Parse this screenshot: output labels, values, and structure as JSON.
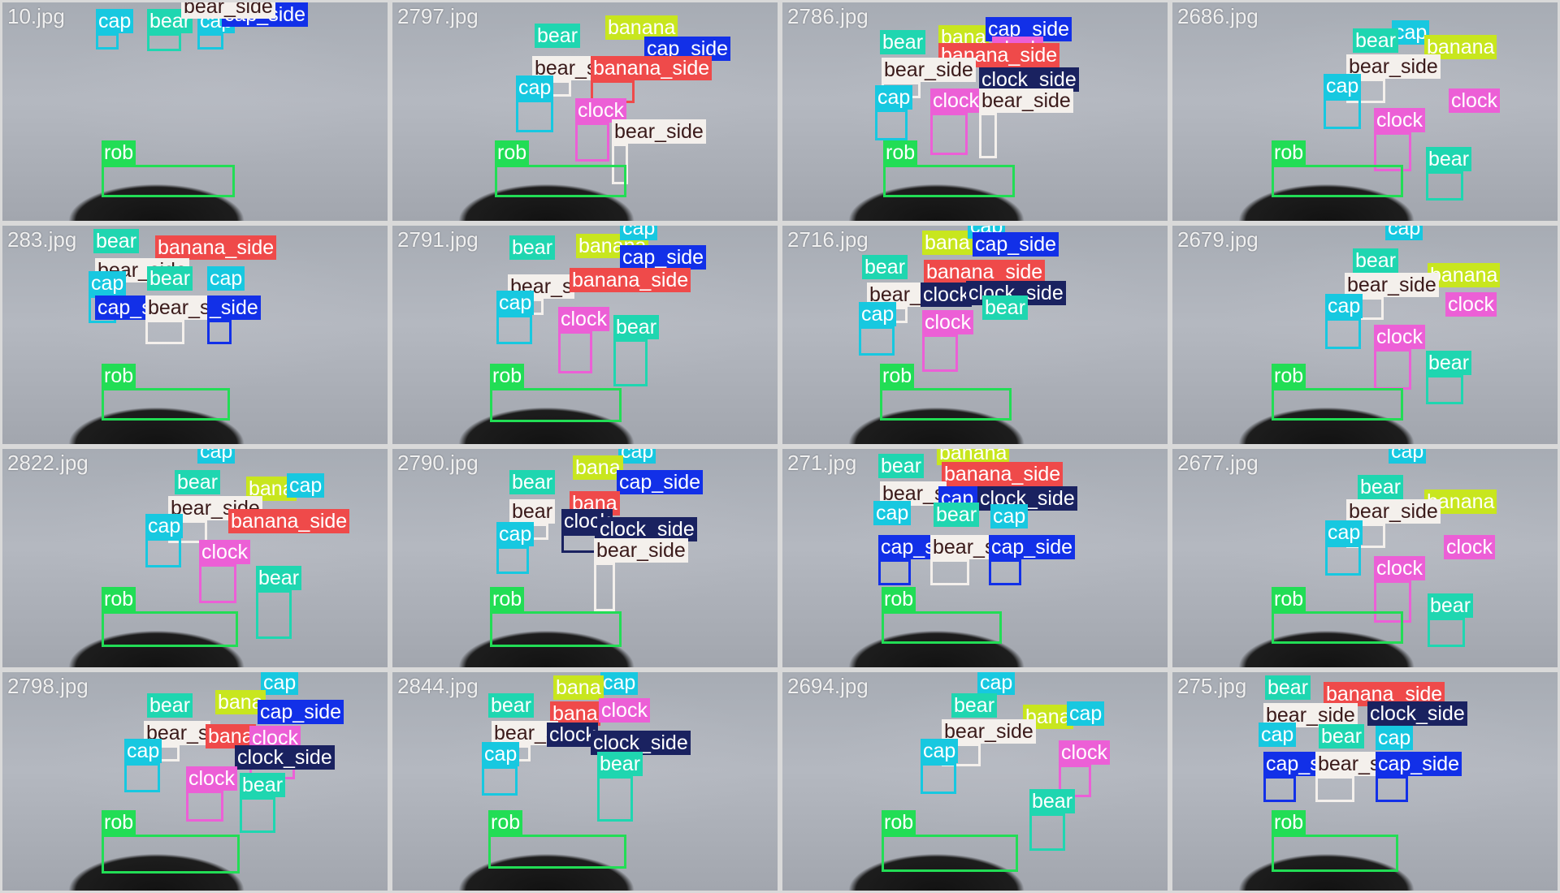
{
  "classes": {
    "rob": {
      "color": "#22dd55",
      "text": "#ffffff"
    },
    "bear": {
      "color": "#1fd6b0",
      "text": "#ffffff"
    },
    "cap": {
      "color": "#17c8e0",
      "text": "#ffffff"
    },
    "banana": {
      "color": "#c8e61e",
      "text": "#ffffff"
    },
    "clock": {
      "color": "#ec5fd6",
      "text": "#ffffff"
    },
    "bear_side": {
      "color": "#f4f0ec",
      "text": "#3a1a1a"
    },
    "banana_side": {
      "color": "#ef4a4a",
      "text": "#ffffff"
    },
    "cap_side": {
      "color": "#1230e8",
      "text": "#ffffff"
    },
    "clock_side": {
      "color": "#1a2260",
      "text": "#ffffff"
    }
  },
  "tiles": [
    {
      "filename": "10.jpg",
      "detections": [
        {
          "class": "cap",
          "label": "cap"
        },
        {
          "class": "bear",
          "label": "bear"
        },
        {
          "class": "cap",
          "label": "cap"
        },
        {
          "class": "cap_side",
          "label": "cap_side"
        },
        {
          "class": "bear_side",
          "label": "bear_side"
        },
        {
          "class": "rob",
          "label": "rob"
        }
      ]
    },
    {
      "filename": "2797.jpg",
      "detections": [
        {
          "class": "bear",
          "label": "bear"
        },
        {
          "class": "banana",
          "label": "banana"
        },
        {
          "class": "cap_side",
          "label": "cap_side"
        },
        {
          "class": "bear_side",
          "label": "bear_s"
        },
        {
          "class": "banana_side",
          "label": "banana_side"
        },
        {
          "class": "cap",
          "label": "cap"
        },
        {
          "class": "clock",
          "label": "clock"
        },
        {
          "class": "bear_side",
          "label": "bear_side"
        },
        {
          "class": "rob",
          "label": "rob"
        }
      ]
    },
    {
      "filename": "2786.jpg",
      "detections": [
        {
          "class": "bear",
          "label": "bear"
        },
        {
          "class": "banana",
          "label": "bana"
        },
        {
          "class": "cap_side",
          "label": "cap_side"
        },
        {
          "class": "clock",
          "label": "clock"
        },
        {
          "class": "banana_side",
          "label": "banana_side"
        },
        {
          "class": "bear_side",
          "label": "bear_side"
        },
        {
          "class": "clock_side",
          "label": "clock_side"
        },
        {
          "class": "cap",
          "label": "cap"
        },
        {
          "class": "clock",
          "label": "clock"
        },
        {
          "class": "bear_side",
          "label": "bear_side"
        },
        {
          "class": "rob",
          "label": "rob"
        }
      ]
    },
    {
      "filename": "2686.jpg",
      "detections": [
        {
          "class": "cap",
          "label": "cap"
        },
        {
          "class": "bear",
          "label": "bear"
        },
        {
          "class": "banana",
          "label": "banana"
        },
        {
          "class": "bear_side",
          "label": "bear_side"
        },
        {
          "class": "cap",
          "label": "cap"
        },
        {
          "class": "clock",
          "label": "clock"
        },
        {
          "class": "clock",
          "label": "clock"
        },
        {
          "class": "bear",
          "label": "bear"
        },
        {
          "class": "rob",
          "label": "rob"
        }
      ]
    },
    {
      "filename": "283.jpg",
      "detections": [
        {
          "class": "bear",
          "label": "bear"
        },
        {
          "class": "banana_side",
          "label": "banana_side"
        },
        {
          "class": "bear_side",
          "label": "bear_side"
        },
        {
          "class": "cap",
          "label": "cap"
        },
        {
          "class": "bear",
          "label": "bear"
        },
        {
          "class": "cap",
          "label": "cap"
        },
        {
          "class": "cap_side",
          "label": "cap_s"
        },
        {
          "class": "bear_side",
          "label": "bear_side"
        },
        {
          "class": "cap_side",
          "label": "_side"
        },
        {
          "class": "rob",
          "label": "rob"
        }
      ]
    },
    {
      "filename": "2791.jpg",
      "detections": [
        {
          "class": "bear",
          "label": "bear"
        },
        {
          "class": "banana",
          "label": "banana"
        },
        {
          "class": "cap",
          "label": "cap"
        },
        {
          "class": "cap_side",
          "label": "cap_side"
        },
        {
          "class": "bear_side",
          "label": "bear_s"
        },
        {
          "class": "banana_side",
          "label": "banana_side"
        },
        {
          "class": "cap",
          "label": "cap"
        },
        {
          "class": "clock",
          "label": "clock"
        },
        {
          "class": "bear",
          "label": "bear"
        },
        {
          "class": "rob",
          "label": "rob"
        }
      ]
    },
    {
      "filename": "2716.jpg",
      "detections": [
        {
          "class": "bear",
          "label": "bear"
        },
        {
          "class": "banana",
          "label": "bana"
        },
        {
          "class": "cap",
          "label": "cap"
        },
        {
          "class": "cap_side",
          "label": "cap_side"
        },
        {
          "class": "banana_side",
          "label": "banana_side"
        },
        {
          "class": "bear_side",
          "label": "bear_s"
        },
        {
          "class": "clock_side",
          "label": "clock"
        },
        {
          "class": "clock_side",
          "label": "clock_side"
        },
        {
          "class": "bear",
          "label": "bear"
        },
        {
          "class": "cap",
          "label": "cap"
        },
        {
          "class": "clock",
          "label": "clock"
        },
        {
          "class": "rob",
          "label": "rob"
        }
      ]
    },
    {
      "filename": "2679.jpg",
      "detections": [
        {
          "class": "cap",
          "label": "cap"
        },
        {
          "class": "bear",
          "label": "bear"
        },
        {
          "class": "banana",
          "label": "banana"
        },
        {
          "class": "bear_side",
          "label": "bear_side"
        },
        {
          "class": "cap",
          "label": "cap"
        },
        {
          "class": "clock",
          "label": "clock"
        },
        {
          "class": "clock",
          "label": "clock"
        },
        {
          "class": "bear",
          "label": "bear"
        },
        {
          "class": "rob",
          "label": "rob"
        }
      ]
    },
    {
      "filename": "2822.jpg",
      "detections": [
        {
          "class": "cap",
          "label": "cap"
        },
        {
          "class": "bear",
          "label": "bear"
        },
        {
          "class": "banana",
          "label": "bana"
        },
        {
          "class": "cap",
          "label": "cap"
        },
        {
          "class": "bear_side",
          "label": "bear_side"
        },
        {
          "class": "banana_side",
          "label": "banana_side"
        },
        {
          "class": "cap",
          "label": "cap"
        },
        {
          "class": "clock",
          "label": "clock"
        },
        {
          "class": "bear",
          "label": "bear"
        },
        {
          "class": "rob",
          "label": "rob"
        }
      ]
    },
    {
      "filename": "2790.jpg",
      "detections": [
        {
          "class": "cap",
          "label": "cap"
        },
        {
          "class": "bear",
          "label": "bear"
        },
        {
          "class": "banana",
          "label": "bana"
        },
        {
          "class": "cap_side",
          "label": "cap_side"
        },
        {
          "class": "banana_side",
          "label": "bana"
        },
        {
          "class": "bear_side",
          "label": "bear"
        },
        {
          "class": "clock_side",
          "label": "clock"
        },
        {
          "class": "clock_side",
          "label": "clock_side"
        },
        {
          "class": "cap",
          "label": "cap"
        },
        {
          "class": "bear_side",
          "label": "bear_side"
        },
        {
          "class": "rob",
          "label": "rob"
        }
      ]
    },
    {
      "filename": "271.jpg",
      "detections": [
        {
          "class": "bear",
          "label": "bear"
        },
        {
          "class": "banana",
          "label": "banana"
        },
        {
          "class": "banana_side",
          "label": "banana_side"
        },
        {
          "class": "bear_side",
          "label": "bear_s"
        },
        {
          "class": "cap_side",
          "label": "cap_"
        },
        {
          "class": "clock_side",
          "label": "clock_side"
        },
        {
          "class": "cap",
          "label": "cap"
        },
        {
          "class": "bear",
          "label": "bear"
        },
        {
          "class": "cap",
          "label": "cap"
        },
        {
          "class": "cap_side",
          "label": "cap_s"
        },
        {
          "class": "bear_side",
          "label": "bear_s"
        },
        {
          "class": "cap_side",
          "label": "cap_side"
        },
        {
          "class": "rob",
          "label": "rob"
        }
      ]
    },
    {
      "filename": "2677.jpg",
      "detections": [
        {
          "class": "cap",
          "label": "cap"
        },
        {
          "class": "bear",
          "label": "bear"
        },
        {
          "class": "banana",
          "label": "banana"
        },
        {
          "class": "bear_side",
          "label": "bear_side"
        },
        {
          "class": "cap",
          "label": "cap"
        },
        {
          "class": "clock",
          "label": "clock"
        },
        {
          "class": "clock",
          "label": "clock"
        },
        {
          "class": "bear",
          "label": "bear"
        },
        {
          "class": "rob",
          "label": "rob"
        }
      ]
    },
    {
      "filename": "2798.jpg",
      "detections": [
        {
          "class": "cap",
          "label": "cap"
        },
        {
          "class": "bear",
          "label": "bear"
        },
        {
          "class": "banana",
          "label": "bana"
        },
        {
          "class": "cap_side",
          "label": "cap_side"
        },
        {
          "class": "bear_side",
          "label": "bear_s"
        },
        {
          "class": "banana_side",
          "label": "bana"
        },
        {
          "class": "clock",
          "label": "clock"
        },
        {
          "class": "cap",
          "label": "cap"
        },
        {
          "class": "clock_side",
          "label": "clock_side"
        },
        {
          "class": "clock",
          "label": "clock"
        },
        {
          "class": "bear",
          "label": "bear"
        },
        {
          "class": "rob",
          "label": "rob"
        }
      ]
    },
    {
      "filename": "2844.jpg",
      "detections": [
        {
          "class": "cap",
          "label": "cap"
        },
        {
          "class": "bear",
          "label": "bear"
        },
        {
          "class": "banana",
          "label": "bana"
        },
        {
          "class": "banana_side",
          "label": "bana"
        },
        {
          "class": "clock",
          "label": "clock"
        },
        {
          "class": "bear_side",
          "label": "bear_s"
        },
        {
          "class": "clock_side",
          "label": "clock"
        },
        {
          "class": "clock_side",
          "label": "clock_side"
        },
        {
          "class": "cap",
          "label": "cap"
        },
        {
          "class": "bear",
          "label": "bear"
        },
        {
          "class": "rob",
          "label": "rob"
        }
      ]
    },
    {
      "filename": "2694.jpg",
      "detections": [
        {
          "class": "cap",
          "label": "cap"
        },
        {
          "class": "bear",
          "label": "bear"
        },
        {
          "class": "banana",
          "label": "bana"
        },
        {
          "class": "cap",
          "label": "cap"
        },
        {
          "class": "bear_side",
          "label": "bear_side"
        },
        {
          "class": "cap",
          "label": "cap"
        },
        {
          "class": "clock",
          "label": "clock"
        },
        {
          "class": "bear",
          "label": "bear"
        },
        {
          "class": "rob",
          "label": "rob"
        }
      ]
    },
    {
      "filename": "275.jpg",
      "detections": [
        {
          "class": "bear",
          "label": "bear"
        },
        {
          "class": "banana_side",
          "label": "banana_side"
        },
        {
          "class": "bear_side",
          "label": "bear_side"
        },
        {
          "class": "clock_side",
          "label": "clock_side"
        },
        {
          "class": "cap",
          "label": "cap"
        },
        {
          "class": "bear",
          "label": "bear"
        },
        {
          "class": "cap",
          "label": "cap"
        },
        {
          "class": "cap_side",
          "label": "cap_s"
        },
        {
          "class": "bear_side",
          "label": "bear_s"
        },
        {
          "class": "cap_side",
          "label": "cap_side"
        },
        {
          "class": "rob",
          "label": "rob"
        }
      ]
    }
  ]
}
